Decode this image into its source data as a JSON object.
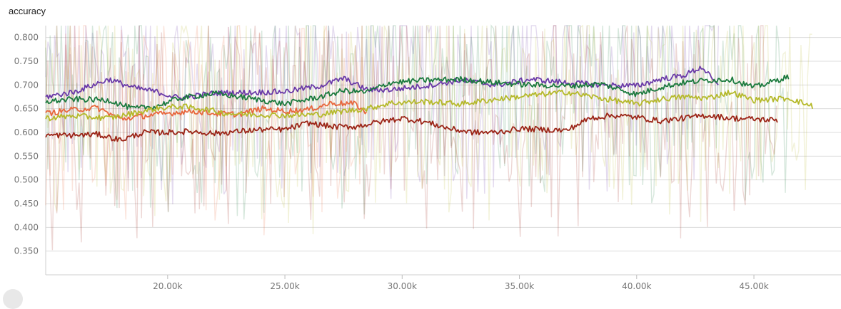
{
  "chart_data": {
    "type": "line",
    "title": "accuracy",
    "xlabel": "",
    "ylabel": "",
    "xlim": [
      14800,
      47800
    ],
    "ylim": [
      0.3,
      0.825
    ],
    "x_ticks": [
      20000,
      25000,
      30000,
      35000,
      40000,
      45000
    ],
    "x_tick_labels": [
      "20.00k",
      "25.00k",
      "30.00k",
      "35.00k",
      "40.00k",
      "45.00k"
    ],
    "y_ticks": [
      0.35,
      0.4,
      0.45,
      0.5,
      0.55,
      0.6,
      0.65,
      0.7,
      0.75,
      0.8
    ],
    "y_tick_labels": [
      "0.350",
      "0.400",
      "0.450",
      "0.500",
      "0.550",
      "0.600",
      "0.650",
      "0.700",
      "0.750",
      "0.800"
    ],
    "grid": true,
    "legend": "none",
    "series": [
      {
        "color": "#6a3aa8",
        "x": [
          14800,
          16000,
          17500,
          18500,
          19500,
          20500,
          22000,
          23500,
          25000,
          26500,
          27500,
          28500,
          29500,
          31000,
          32500,
          34000,
          35500,
          37000,
          38500,
          40000,
          41000,
          42000,
          42800,
          43500
        ],
        "y": [
          0.675,
          0.685,
          0.712,
          0.695,
          0.686,
          0.672,
          0.683,
          0.684,
          0.686,
          0.698,
          0.714,
          0.69,
          0.69,
          0.698,
          0.71,
          0.7,
          0.712,
          0.705,
          0.7,
          0.698,
          0.712,
          0.72,
          0.738,
          0.695
        ]
      },
      {
        "color": "#1b7a3e",
        "x": [
          14800,
          16000,
          17500,
          18500,
          19500,
          20500,
          22000,
          23500,
          25000,
          26500,
          27500,
          28500,
          29500,
          31000,
          32500,
          34000,
          35500,
          37000,
          38500,
          40000,
          41000,
          42000,
          43000,
          44000,
          45000,
          46500
        ],
        "y": [
          0.665,
          0.67,
          0.668,
          0.65,
          0.655,
          0.672,
          0.682,
          0.672,
          0.66,
          0.675,
          0.688,
          0.685,
          0.705,
          0.71,
          0.712,
          0.705,
          0.7,
          0.698,
          0.702,
          0.68,
          0.695,
          0.705,
          0.71,
          0.712,
          0.695,
          0.718
        ]
      },
      {
        "color": "#e8673c",
        "x": [
          14800,
          16000,
          17000,
          18000,
          19000,
          20000,
          21000,
          22000,
          23000,
          24000,
          25000,
          26000,
          27000,
          28000,
          28500
        ],
        "y": [
          0.64,
          0.648,
          0.652,
          0.628,
          0.635,
          0.64,
          0.645,
          0.64,
          0.638,
          0.65,
          0.645,
          0.648,
          0.662,
          0.66,
          0.64
        ]
      },
      {
        "color": "#b5b92a",
        "x": [
          14800,
          16000,
          17500,
          18500,
          19500,
          20500,
          21500,
          22500,
          23500,
          25000,
          26500,
          27500,
          28500,
          29500,
          31000,
          32500,
          34000,
          35500,
          37000,
          38500,
          40000,
          41000,
          42000,
          43000,
          44000,
          45000,
          46500,
          47500
        ],
        "y": [
          0.63,
          0.635,
          0.63,
          0.64,
          0.65,
          0.655,
          0.65,
          0.64,
          0.638,
          0.636,
          0.638,
          0.645,
          0.65,
          0.662,
          0.665,
          0.66,
          0.67,
          0.678,
          0.685,
          0.672,
          0.66,
          0.67,
          0.675,
          0.672,
          0.685,
          0.668,
          0.672,
          0.655
        ]
      },
      {
        "color": "#9b2416",
        "x": [
          14800,
          16000,
          17000,
          18000,
          19000,
          20000,
          21000,
          22000,
          23000,
          24000,
          25000,
          26000,
          27000,
          28000,
          29000,
          30000,
          31000,
          32000,
          33000,
          34000,
          35000,
          36000,
          37000,
          38000,
          39000,
          40000,
          41000,
          42000,
          43000,
          44000,
          45000,
          46000
        ],
        "y": [
          0.594,
          0.594,
          0.596,
          0.584,
          0.6,
          0.6,
          0.602,
          0.598,
          0.602,
          0.606,
          0.606,
          0.62,
          0.612,
          0.612,
          0.622,
          0.63,
          0.622,
          0.608,
          0.6,
          0.6,
          0.608,
          0.606,
          0.604,
          0.63,
          0.636,
          0.632,
          0.624,
          0.63,
          0.636,
          0.63,
          0.628,
          0.626
        ]
      }
    ]
  }
}
